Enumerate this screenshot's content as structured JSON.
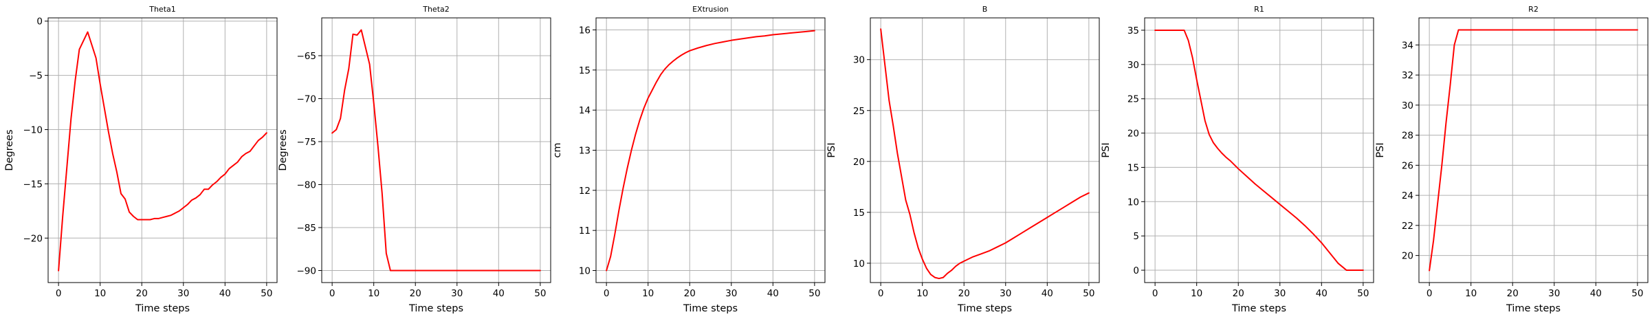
{
  "chart_data": [
    {
      "type": "line",
      "title": "Theta1",
      "xlabel": "Time steps",
      "ylabel": "Degrees",
      "xlim": [
        -2.5,
        52.5
      ],
      "ylim": [
        -24.1,
        0.3
      ],
      "xticks": [
        0,
        10,
        20,
        30,
        40,
        50
      ],
      "yticks": [
        -20,
        -15,
        -10,
        -5,
        0
      ],
      "grid": true,
      "color": "#ff0000",
      "x": [
        0,
        1,
        2,
        3,
        4,
        5,
        6,
        7,
        8,
        9,
        10,
        11,
        12,
        13,
        14,
        15,
        16,
        17,
        18,
        19,
        20,
        21,
        22,
        23,
        24,
        25,
        26,
        27,
        28,
        29,
        30,
        31,
        32,
        33,
        34,
        35,
        36,
        37,
        38,
        39,
        40,
        41,
        42,
        43,
        44,
        45,
        46,
        47,
        48,
        49,
        50
      ],
      "y": [
        -23.0,
        -18.0,
        -13.5,
        -9.0,
        -5.5,
        -2.6,
        -1.8,
        -1.0,
        -2.2,
        -3.4,
        -5.8,
        -8.0,
        -10.2,
        -12.2,
        -13.9,
        -15.9,
        -16.4,
        -17.6,
        -18.0,
        -18.3,
        -18.3,
        -18.3,
        -18.3,
        -18.2,
        -18.2,
        -18.1,
        -18.0,
        -17.9,
        -17.7,
        -17.5,
        -17.2,
        -16.9,
        -16.5,
        -16.3,
        -16.0,
        -15.5,
        -15.5,
        -15.1,
        -14.8,
        -14.4,
        -14.1,
        -13.6,
        -13.3,
        -13.0,
        -12.5,
        -12.2,
        -12.0,
        -11.5,
        -11.0,
        -10.7,
        -10.3
      ]
    },
    {
      "type": "line",
      "title": "Theta2",
      "xlabel": "Time steps",
      "ylabel": "Degrees",
      "xlim": [
        -2.5,
        52.5
      ],
      "ylim": [
        -91.4,
        -60.6
      ],
      "xticks": [
        0,
        10,
        20,
        30,
        40,
        50
      ],
      "yticks": [
        -90,
        -85,
        -80,
        -75,
        -70,
        -65
      ],
      "grid": true,
      "color": "#ff0000",
      "x": [
        0,
        1,
        2,
        3,
        4,
        5,
        6,
        7,
        8,
        9,
        10,
        11,
        12,
        13,
        14,
        50
      ],
      "y": [
        -74.0,
        -73.6,
        -72.3,
        -69.0,
        -66.5,
        -62.5,
        -62.6,
        -62.0,
        -64.0,
        -66.0,
        -70.5,
        -75.5,
        -81.0,
        -88.0,
        -90.0,
        -90.0
      ]
    },
    {
      "type": "line",
      "title": "EXtrusion",
      "xlabel": "Time steps",
      "ylabel": "cm",
      "xlim": [
        -2.5,
        52.5
      ],
      "ylim": [
        9.7,
        16.3
      ],
      "xticks": [
        0,
        10,
        20,
        30,
        40,
        50
      ],
      "yticks": [
        10,
        11,
        12,
        13,
        14,
        15,
        16
      ],
      "grid": true,
      "color": "#ff0000",
      "x": [
        0,
        1,
        2,
        3,
        4,
        5,
        6,
        7,
        8,
        9,
        10,
        11,
        12,
        13,
        14,
        15,
        16,
        17,
        18,
        19,
        20,
        22,
        24,
        26,
        28,
        30,
        32,
        34,
        36,
        38,
        40,
        42,
        44,
        46,
        48,
        50
      ],
      "y": [
        10.0,
        10.35,
        10.9,
        11.5,
        12.05,
        12.55,
        13.0,
        13.4,
        13.75,
        14.05,
        14.3,
        14.5,
        14.7,
        14.88,
        15.02,
        15.13,
        15.22,
        15.3,
        15.37,
        15.43,
        15.48,
        15.55,
        15.61,
        15.66,
        15.7,
        15.74,
        15.77,
        15.8,
        15.83,
        15.85,
        15.88,
        15.9,
        15.92,
        15.94,
        15.96,
        15.98
      ]
    },
    {
      "type": "line",
      "title": "B",
      "xlabel": "Time steps",
      "ylabel": "PSI",
      "xlim": [
        -2.5,
        52.5
      ],
      "ylim": [
        8.1,
        34.1
      ],
      "xticks": [
        0,
        10,
        20,
        30,
        40,
        50
      ],
      "yticks": [
        10,
        15,
        20,
        25,
        30
      ],
      "grid": true,
      "color": "#ff0000",
      "x": [
        0,
        1,
        2,
        3,
        4,
        5,
        6,
        7,
        8,
        9,
        10,
        11,
        12,
        13,
        14,
        15,
        16,
        17,
        18,
        19,
        20,
        22,
        24,
        26,
        28,
        30,
        32,
        34,
        36,
        38,
        40,
        42,
        44,
        46,
        48,
        50
      ],
      "y": [
        33.0,
        29.5,
        26.0,
        23.5,
        20.8,
        18.5,
        16.2,
        14.8,
        13.0,
        11.5,
        10.4,
        9.5,
        8.9,
        8.6,
        8.5,
        8.6,
        9.0,
        9.3,
        9.7,
        10.0,
        10.2,
        10.6,
        10.9,
        11.2,
        11.6,
        12.0,
        12.5,
        13.0,
        13.5,
        14.0,
        14.5,
        15.0,
        15.5,
        16.0,
        16.5,
        16.9
      ]
    },
    {
      "type": "line",
      "title": "R1",
      "xlabel": "Time steps",
      "ylabel": "PSI",
      "xlim": [
        -2.5,
        52.5
      ],
      "ylim": [
        -1.8,
        36.8
      ],
      "xticks": [
        0,
        10,
        20,
        30,
        40,
        50
      ],
      "yticks": [
        0,
        5,
        10,
        15,
        20,
        25,
        30,
        35
      ],
      "grid": true,
      "color": "#ff0000",
      "x": [
        0,
        7,
        8,
        9,
        10,
        11,
        12,
        13,
        14,
        15,
        16,
        17,
        18,
        20,
        22,
        24,
        26,
        28,
        30,
        32,
        34,
        36,
        38,
        40,
        42,
        44,
        46,
        47,
        48,
        49,
        50
      ],
      "y": [
        35.0,
        35.0,
        33.5,
        31.0,
        27.8,
        24.8,
        21.8,
        19.8,
        18.6,
        17.8,
        17.1,
        16.5,
        16.0,
        14.8,
        13.7,
        12.6,
        11.6,
        10.6,
        9.6,
        8.6,
        7.6,
        6.5,
        5.3,
        4.0,
        2.5,
        1.0,
        0.0,
        0.0,
        0.0,
        0.0,
        0.0
      ]
    },
    {
      "type": "line",
      "title": "R2",
      "xlabel": "Time steps",
      "ylabel": "PSI",
      "xlim": [
        -2.5,
        52.5
      ],
      "ylim": [
        18.2,
        35.8
      ],
      "xticks": [
        0,
        10,
        20,
        30,
        40,
        50
      ],
      "yticks": [
        20,
        22,
        24,
        26,
        28,
        30,
        32,
        34
      ],
      "grid": true,
      "color": "#ff0000",
      "x": [
        0,
        1,
        2,
        3,
        4,
        5,
        6,
        7,
        8,
        50
      ],
      "y": [
        19.0,
        21.0,
        23.5,
        26.0,
        28.8,
        31.3,
        34.0,
        35.0,
        35.0,
        35.0
      ]
    }
  ]
}
